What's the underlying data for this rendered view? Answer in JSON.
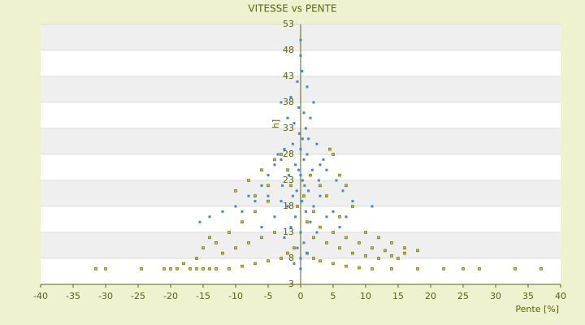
{
  "chart_data": {
    "type": "scatter",
    "title": "VITESSE vs PENTE",
    "x_label": "Pente [%]",
    "y_label": "[km/h]",
    "xlim": [
      -40,
      40
    ],
    "xticks": [
      -40,
      -35,
      -30,
      -25,
      -20,
      -15,
      -10,
      -5,
      0,
      5,
      10,
      15,
      20,
      25,
      30,
      35,
      40
    ],
    "ylim": [
      3,
      53
    ],
    "yticks": [
      3,
      8,
      13,
      18,
      23,
      28,
      33,
      38,
      43,
      48,
      53
    ],
    "grid": true,
    "banded": true,
    "series": [
      {
        "color": "#2f8fdf",
        "x": [
          0,
          0,
          0.2,
          -0.5,
          1,
          -1.5,
          -3,
          2,
          -0.3,
          0.5,
          -2,
          1.5,
          -1,
          0.8,
          -0.2,
          0.3,
          -1.2,
          2.5,
          -2.5,
          0,
          1,
          -3.5,
          3.5,
          0.5,
          -0.8,
          -4,
          4,
          1.8,
          -1.8,
          0,
          -5,
          5.5,
          2.8,
          -2.8,
          0.6,
          -6,
          -0.6,
          6.5,
          1.2,
          -8,
          -1.2,
          3,
          8,
          -3,
          0.2,
          -10,
          2,
          -2,
          11,
          -12,
          0.8,
          -0.8,
          -14,
          4,
          -4,
          -15.5,
          1.5,
          -1.5,
          6,
          -6,
          0,
          2.5,
          -2.5,
          0.5,
          -0.5,
          1,
          0,
          -1,
          0,
          -7,
          -5,
          5,
          -9,
          7,
          3,
          -3,
          0.3,
          -0.3,
          1.2
        ],
        "values": [
          50,
          47,
          44,
          42,
          41,
          39,
          38,
          38,
          37,
          36,
          35,
          35,
          34,
          33,
          32,
          31,
          30,
          30,
          29,
          29,
          28,
          28,
          27,
          27,
          26,
          26,
          25,
          25,
          24,
          24,
          24,
          23,
          23,
          22,
          22,
          22,
          21,
          21,
          21,
          20,
          20,
          20,
          19,
          19,
          19,
          18,
          18,
          18,
          18,
          17,
          17,
          16,
          16,
          16,
          16,
          15,
          15,
          14,
          14,
          14,
          13,
          13,
          12,
          11,
          10,
          9,
          8,
          7,
          6,
          19,
          20,
          17,
          17,
          16,
          26,
          27,
          23,
          25,
          31
        ]
      },
      {
        "color": "#c8c000",
        "x": [
          -31.5,
          -30,
          -24.5,
          -21,
          -20,
          -19,
          -17,
          -16,
          -15,
          -14,
          -13,
          -11,
          -9,
          -7,
          -5,
          -3,
          -2,
          -1,
          1,
          2,
          3,
          5,
          7,
          9,
          11,
          14,
          18,
          22,
          25,
          27.5,
          33,
          37,
          -12,
          -10,
          -8,
          -6,
          -4,
          -13,
          -11,
          -9,
          -7,
          -5,
          -10,
          -8,
          -6,
          -4,
          -3,
          -2,
          -5,
          -7,
          -14,
          -15,
          2,
          4,
          6,
          8,
          10,
          12,
          14,
          16,
          3,
          5,
          7,
          9,
          11,
          13,
          15,
          2,
          4,
          6,
          5,
          4.5,
          3,
          1,
          0.5,
          -0.5,
          1.5,
          -1.5,
          7,
          8,
          6,
          10,
          12,
          14,
          16,
          18,
          -16,
          -18
        ],
        "values": [
          6,
          6,
          6,
          6,
          6,
          6,
          6,
          6,
          6,
          6,
          6,
          6,
          6.5,
          7,
          7.5,
          8,
          9,
          10,
          9,
          8,
          7.5,
          7,
          6.5,
          6.2,
          6,
          6,
          6,
          6,
          6,
          6,
          6,
          6,
          9,
          10,
          11,
          12,
          13,
          11,
          13,
          15,
          17,
          19,
          21,
          23,
          25,
          27,
          28,
          25,
          22,
          20,
          12,
          10,
          12,
          11,
          10,
          9,
          8.5,
          8,
          8.5,
          9,
          14,
          13,
          12,
          11,
          10,
          9.5,
          8,
          17,
          20,
          24,
          28,
          29,
          22,
          15,
          20,
          18,
          24,
          22,
          22,
          18,
          16,
          13,
          12,
          11,
          10,
          9.5,
          8,
          7
        ]
      }
    ]
  }
}
